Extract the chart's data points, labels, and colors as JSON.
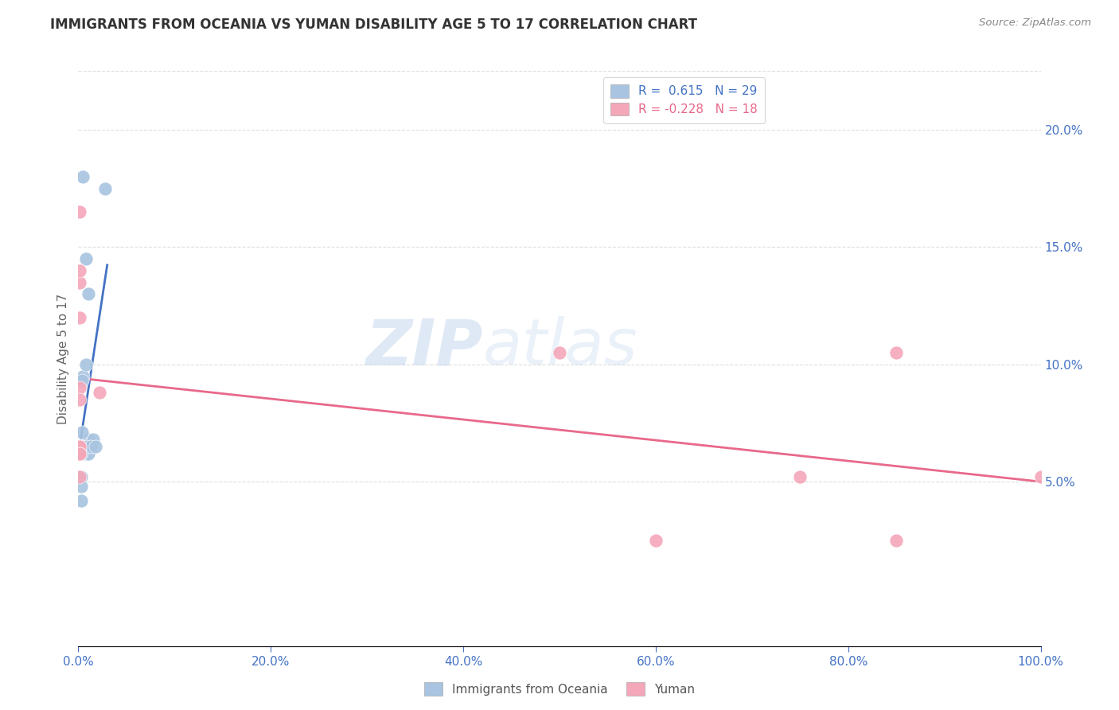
{
  "title": "IMMIGRANTS FROM OCEANIA VS YUMAN DISABILITY AGE 5 TO 17 CORRELATION CHART",
  "source": "Source: ZipAtlas.com",
  "ylabel": "Disability Age 5 to 17",
  "watermark": "ZIPatlas",
  "oceania_color": "#a8c4e0",
  "yuman_color": "#f4a7b9",
  "trend_oceania_color": "#4472c4",
  "trend_yuman_color": "#e8698a",
  "oceania_x": [
    0.005,
    0.008,
    0.005,
    0.01,
    0.01,
    0.015,
    0.008,
    0.004,
    0.004,
    0.002,
    0.002,
    0.004,
    0.001,
    0.001,
    0.002,
    0.004,
    0.007,
    0.009,
    0.01,
    0.013,
    0.003,
    0.003,
    0.003,
    0.002,
    0.001,
    0.001,
    0.003,
    0.028,
    0.018
  ],
  "oceania_y": [
    0.18,
    0.145,
    0.095,
    0.13,
    0.068,
    0.068,
    0.1,
    0.093,
    0.071,
    0.065,
    0.065,
    0.065,
    0.062,
    0.062,
    0.065,
    0.065,
    0.062,
    0.065,
    0.062,
    0.065,
    0.052,
    0.048,
    0.042,
    0.062,
    0.062,
    0.062,
    0.062,
    0.175,
    0.065
  ],
  "yuman_x": [
    0.001,
    0.001,
    0.001,
    0.001,
    0.001,
    0.001,
    0.001,
    0.001,
    0.001,
    0.001,
    0.001,
    0.022,
    0.5,
    0.75,
    0.85,
    0.6,
    0.85,
    1.0
  ],
  "yuman_y": [
    0.135,
    0.165,
    0.14,
    0.12,
    0.09,
    0.065,
    0.065,
    0.052,
    0.062,
    0.062,
    0.085,
    0.088,
    0.105,
    0.052,
    0.025,
    0.025,
    0.105,
    0.052
  ],
  "xlim": [
    0.0,
    1.0
  ],
  "ylim": [
    -0.02,
    0.225
  ],
  "xticks": [
    0.0,
    0.2,
    0.4,
    0.6,
    0.8,
    1.0
  ],
  "yticks_right": [
    0.05,
    0.1,
    0.15,
    0.2
  ],
  "ytick_labels_right": [
    "5.0%",
    "10.0%",
    "15.0%",
    "20.0%"
  ],
  "xtick_labels": [
    "0.0%",
    "20.0%",
    "40.0%",
    "60.0%",
    "80.0%",
    "100.0%"
  ],
  "grid_color": "#dddddd",
  "background_color": "#ffffff",
  "fig_width": 14.06,
  "fig_height": 8.92,
  "tick_color": "#4472c4",
  "title_color": "#333333",
  "source_color": "#888888"
}
